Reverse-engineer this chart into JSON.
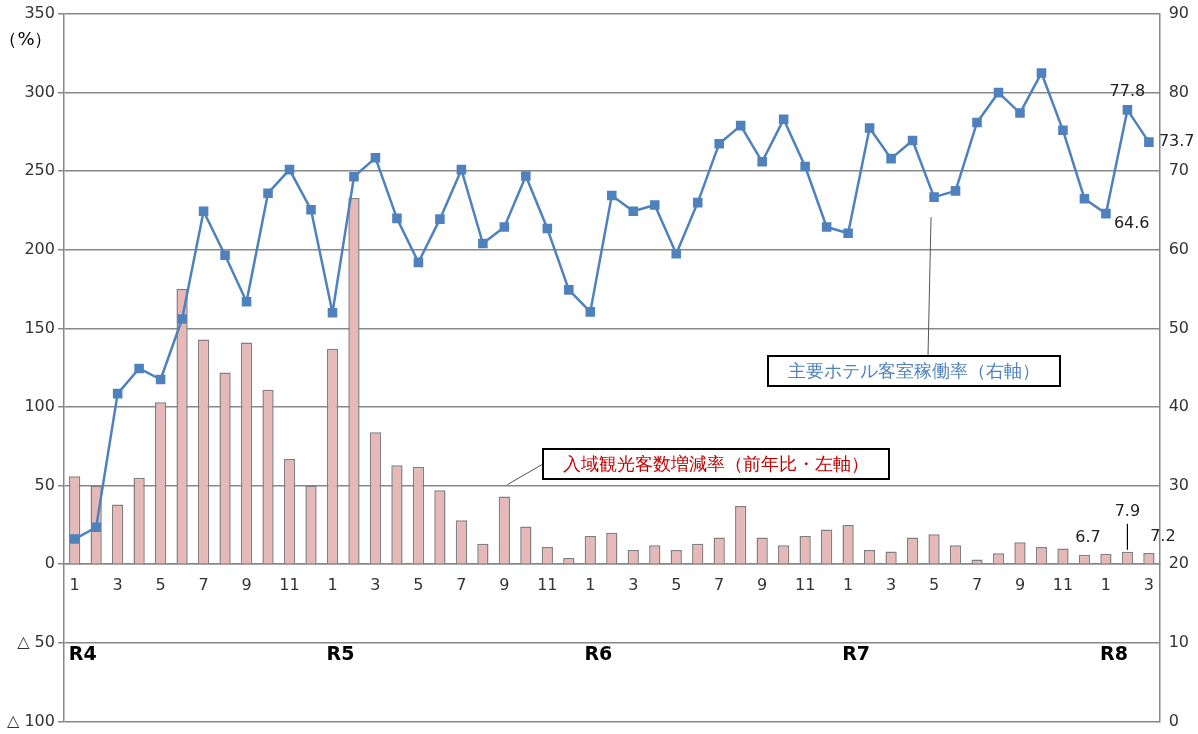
{
  "chart_data": {
    "type": "bar",
    "ylabel": "（%）",
    "categories": [
      "1",
      null,
      "3",
      null,
      "5",
      null,
      "7",
      null,
      "9",
      null,
      "11",
      null,
      "1",
      null,
      "3",
      null,
      "5",
      null,
      "7",
      null,
      "9",
      null,
      "11",
      null,
      "1",
      null,
      "3",
      null,
      "5",
      null,
      "7",
      null,
      "9",
      null,
      "11",
      null,
      "1",
      null,
      "3",
      null,
      "5",
      null,
      "7",
      null,
      "9",
      null,
      "11",
      null,
      "1",
      null,
      "3"
    ],
    "series": [
      {
        "name": "入域観光客数増減率（前年比・左軸）",
        "color": "#e6b8b7",
        "values": [
          56,
          50,
          38,
          55,
          103,
          175,
          143,
          122,
          141,
          111,
          67,
          50,
          137,
          233,
          84,
          63,
          62,
          47,
          28,
          13,
          43,
          24,
          11,
          4,
          18,
          20,
          9,
          12,
          9,
          13,
          17,
          37,
          17,
          12,
          18,
          22,
          25,
          9,
          8,
          17,
          19,
          12,
          3,
          7,
          14,
          11,
          10,
          6,
          6.7,
          7.9,
          7.2
        ],
        "value_labels": [
          null,
          null,
          null,
          null,
          null,
          null,
          null,
          null,
          null,
          null,
          null,
          null,
          null,
          null,
          null,
          null,
          null,
          null,
          null,
          null,
          null,
          null,
          null,
          null,
          null,
          null,
          null,
          null,
          null,
          null,
          null,
          null,
          null,
          null,
          null,
          null,
          null,
          null,
          null,
          null,
          null,
          null,
          null,
          null,
          null,
          null,
          null,
          null,
          "6.7",
          "7.9",
          "7.2"
        ]
      },
      {
        "name": "主要ホテル客室稼働率（右軸）",
        "type": "line",
        "axis": "y2",
        "color": "#4f81bd",
        "values": [
          23.2,
          24.7,
          41.7,
          44.9,
          43.5,
          51.2,
          64.9,
          59.3,
          53.4,
          67.2,
          70.2,
          65.1,
          52.0,
          69.3,
          71.7,
          64.0,
          58.4,
          63.9,
          70.2,
          60.8,
          62.9,
          69.4,
          62.7,
          54.9,
          52.1,
          66.9,
          64.9,
          65.7,
          59.5,
          66.0,
          73.5,
          75.8,
          71.2,
          76.6,
          70.6,
          62.9,
          62.1,
          75.5,
          71.6,
          73.9,
          66.7,
          67.5,
          76.2,
          80.0,
          77.4,
          82.5,
          75.2,
          66.5,
          64.6,
          77.8,
          73.7
        ],
        "value_labels": [
          null,
          null,
          null,
          null,
          null,
          null,
          null,
          null,
          null,
          null,
          null,
          null,
          null,
          null,
          null,
          null,
          null,
          null,
          null,
          null,
          null,
          null,
          null,
          null,
          null,
          null,
          null,
          null,
          null,
          null,
          null,
          null,
          null,
          null,
          null,
          null,
          null,
          null,
          null,
          null,
          null,
          null,
          null,
          null,
          null,
          null,
          null,
          null,
          "64.6",
          "77.8",
          "73.7"
        ]
      }
    ],
    "ylim": [
      -100,
      350
    ],
    "yticks": [
      {
        "value": -100,
        "label": "△ 100"
      },
      {
        "value": -50,
        "label": "△ 50"
      },
      0,
      50,
      100,
      150,
      200,
      250,
      300,
      350
    ],
    "y2lim": [
      0,
      90
    ],
    "y2ticks": [
      0,
      10,
      20,
      30,
      40,
      50,
      60,
      70,
      80,
      90
    ],
    "annotations": [
      "R4",
      "R5",
      "R6",
      "R7",
      "R8"
    ],
    "grid": "y",
    "legend": false,
    "marker": "square",
    "line_style": "solid"
  }
}
